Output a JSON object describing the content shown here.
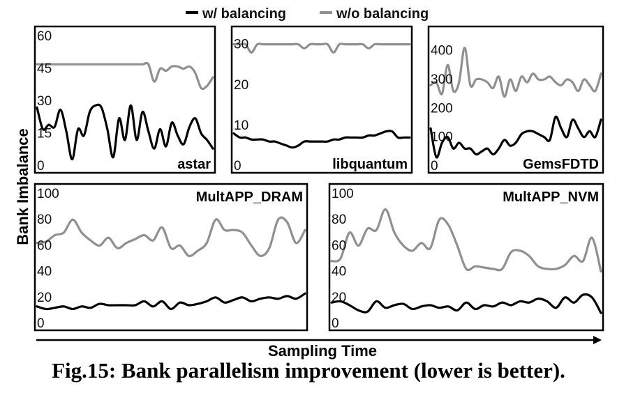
{
  "legend": [
    {
      "label": "w/ balancing",
      "color": "#000000"
    },
    {
      "label": "w/o balancing",
      "color": "#909090"
    }
  ],
  "y_axis_label": "Bank Imbalance",
  "x_axis_label": "Sampling Time",
  "caption": "Fig.15: Bank parallelism improvement (lower is better).",
  "chart_data": [
    {
      "type": "line",
      "title": "astar",
      "ylim": [
        0,
        60
      ],
      "yticks": [
        0,
        15,
        30,
        45,
        60
      ],
      "x": [
        0,
        1,
        2,
        3,
        4,
        5,
        6,
        7,
        8,
        9,
        10,
        11,
        12,
        13,
        14,
        15,
        16,
        17,
        18,
        19,
        20,
        21,
        22,
        23,
        24,
        25,
        26,
        27,
        28,
        29,
        30
      ],
      "series": [
        {
          "name": "w/ balancing",
          "values": [
            27,
            17,
            19,
            18,
            26,
            16,
            3,
            17,
            14,
            25,
            28,
            27,
            17,
            4,
            22,
            12,
            28,
            12,
            25,
            16,
            8,
            17,
            9,
            20,
            14,
            10,
            18,
            22,
            15,
            12,
            8
          ]
        },
        {
          "name": "w/o balancing",
          "values": [
            47,
            47,
            47,
            47,
            47,
            47,
            47,
            47,
            47,
            47,
            47,
            47,
            47,
            47,
            47,
            47,
            47,
            47,
            47,
            47,
            39,
            45,
            44,
            46,
            46,
            45,
            46,
            43,
            36,
            37,
            41
          ]
        }
      ]
    },
    {
      "type": "line",
      "title": "libquantum",
      "ylim": [
        0,
        32
      ],
      "yticks": [
        0,
        10,
        20,
        30
      ],
      "x": [
        0,
        1,
        2,
        3,
        4,
        5,
        6,
        7,
        8,
        9,
        10,
        11,
        12,
        13,
        14,
        15,
        16,
        17,
        18,
        19,
        20,
        21,
        22,
        23,
        24,
        25,
        26,
        27,
        28,
        29,
        30
      ],
      "series": [
        {
          "name": "w/ balancing",
          "values": [
            8,
            7,
            7,
            6.5,
            6.5,
            6.5,
            6,
            6,
            5.5,
            5,
            4.5,
            5,
            6,
            6,
            6,
            6,
            6,
            6.5,
            6.5,
            7,
            7,
            7,
            7,
            7.5,
            7.5,
            8,
            8.5,
            8.5,
            7,
            7,
            7
          ]
        },
        {
          "name": "w/o balancing",
          "values": [
            30,
            30,
            30,
            28,
            30,
            30,
            30,
            30,
            30,
            30,
            30,
            30,
            29,
            30,
            30,
            30,
            30,
            28,
            30,
            30,
            30,
            30,
            30,
            29,
            30,
            30,
            30,
            30,
            30,
            30,
            30
          ]
        }
      ]
    },
    {
      "type": "line",
      "title": "GemsFDTD",
      "ylim": [
        0,
        450
      ],
      "yticks": [
        0,
        100,
        200,
        300,
        400
      ],
      "x": [
        0,
        1,
        2,
        3,
        4,
        5,
        6,
        7,
        8,
        9,
        10,
        11,
        12,
        13,
        14,
        15,
        16,
        17,
        18,
        19,
        20,
        21,
        22,
        23,
        24,
        25,
        26,
        27,
        28,
        29,
        30
      ],
      "series": [
        {
          "name": "w/ balancing",
          "values": [
            130,
            30,
            80,
            100,
            60,
            80,
            60,
            60,
            40,
            50,
            60,
            40,
            60,
            90,
            70,
            80,
            110,
            120,
            120,
            110,
            100,
            90,
            170,
            130,
            100,
            160,
            130,
            100,
            120,
            100,
            160
          ]
        },
        {
          "name": "w/o balancing",
          "values": [
            280,
            290,
            250,
            350,
            260,
            290,
            410,
            280,
            300,
            300,
            290,
            270,
            310,
            240,
            300,
            260,
            310,
            290,
            320,
            300,
            300,
            310,
            290,
            280,
            300,
            290,
            260,
            300,
            280,
            260,
            320
          ]
        }
      ]
    },
    {
      "type": "line",
      "title": "MultAPP_DRAM",
      "ylim": [
        0,
        100
      ],
      "yticks": [
        0,
        20,
        40,
        60,
        80,
        100
      ],
      "x": [
        0,
        1,
        2,
        3,
        4,
        5,
        6,
        7,
        8,
        9,
        10,
        11,
        12,
        13,
        14,
        15,
        16,
        17,
        18,
        19,
        20,
        21,
        22,
        23,
        24,
        25,
        26,
        27,
        28,
        29,
        30
      ],
      "series": [
        {
          "name": "w/ balancing",
          "values": [
            13,
            11,
            12,
            13,
            11,
            13,
            12,
            15,
            14,
            14,
            14,
            14,
            17,
            13,
            17,
            11,
            16,
            14,
            15,
            17,
            20,
            16,
            18,
            20,
            17,
            19,
            20,
            19,
            21,
            19,
            23
          ]
        },
        {
          "name": "w/o balancing",
          "values": [
            62,
            63,
            68,
            70,
            80,
            70,
            64,
            60,
            66,
            58,
            62,
            65,
            68,
            64,
            74,
            58,
            60,
            52,
            56,
            62,
            80,
            72,
            72,
            70,
            60,
            52,
            58,
            80,
            78,
            62,
            72
          ]
        }
      ]
    },
    {
      "type": "line",
      "title": "MultAPP_NVM",
      "ylim": [
        0,
        100
      ],
      "yticks": [
        0,
        20,
        40,
        60,
        80,
        100
      ],
      "x": [
        0,
        1,
        2,
        3,
        4,
        5,
        6,
        7,
        8,
        9,
        10,
        11,
        12,
        13,
        14,
        15,
        16,
        17,
        18,
        19,
        20,
        21,
        22,
        23,
        24,
        25,
        26,
        27,
        28,
        29,
        30
      ],
      "series": [
        {
          "name": "w/ balancing",
          "values": [
            16,
            17,
            14,
            10,
            9,
            17,
            12,
            14,
            15,
            11,
            13,
            14,
            12,
            13,
            10,
            16,
            11,
            14,
            13,
            16,
            14,
            17,
            16,
            19,
            17,
            12,
            20,
            16,
            22,
            20,
            8
          ]
        },
        {
          "name": "w/o balancing",
          "values": [
            48,
            50,
            70,
            60,
            73,
            72,
            88,
            70,
            60,
            56,
            62,
            58,
            80,
            76,
            60,
            42,
            44,
            43,
            42,
            42,
            55,
            56,
            52,
            44,
            42,
            42,
            45,
            52,
            48,
            66,
            40
          ]
        }
      ]
    }
  ]
}
